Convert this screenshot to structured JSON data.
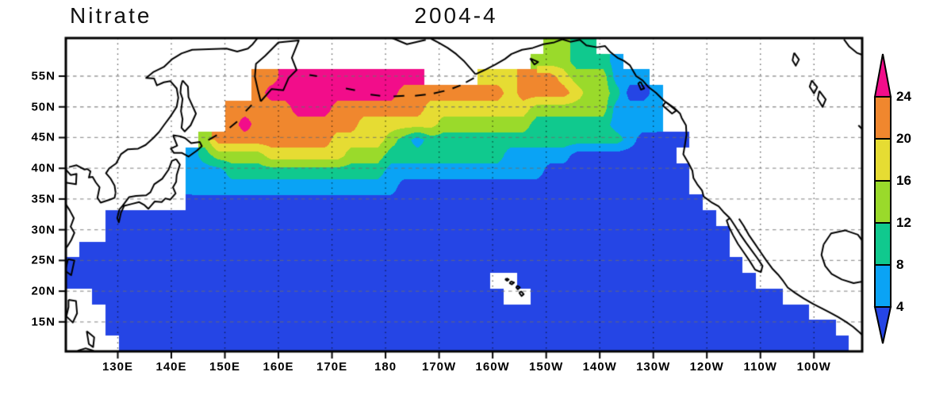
{
  "header": {
    "title": "Nitrate",
    "period": "2004-4"
  },
  "axes": {
    "lat_ticks": [
      {
        "label": "55N",
        "deg": 55
      },
      {
        "label": "50N",
        "deg": 50
      },
      {
        "label": "45N",
        "deg": 45
      },
      {
        "label": "40N",
        "deg": 40
      },
      {
        "label": "35N",
        "deg": 35
      },
      {
        "label": "30N",
        "deg": 30
      },
      {
        "label": "25N",
        "deg": 25
      },
      {
        "label": "20N",
        "deg": 20
      },
      {
        "label": "15N",
        "deg": 15
      }
    ],
    "lon_ticks": [
      {
        "label": "130E",
        "deg": 130
      },
      {
        "label": "140E",
        "deg": 140
      },
      {
        "label": "150E",
        "deg": 150
      },
      {
        "label": "160E",
        "deg": 160
      },
      {
        "label": "170E",
        "deg": 170
      },
      {
        "label": "180",
        "deg": 180
      },
      {
        "label": "170W",
        "deg": 190
      },
      {
        "label": "160W",
        "deg": 200
      },
      {
        "label": "150W",
        "deg": 210
      },
      {
        "label": "140W",
        "deg": 220
      },
      {
        "label": "130W",
        "deg": 230
      },
      {
        "label": "120W",
        "deg": 240
      },
      {
        "label": "110W",
        "deg": 250
      },
      {
        "label": "100W",
        "deg": 260
      }
    ]
  },
  "colorbar": {
    "tick_labels": [
      "24",
      "20",
      "16",
      "12",
      "8",
      "4"
    ],
    "levels": [
      4,
      8,
      12,
      16,
      20,
      24
    ]
  },
  "chart_data": {
    "type": "heatmap",
    "title": "Nitrate",
    "period": "2004-4",
    "region": {
      "lon_min_deg_east": 120.3,
      "lon_max_deg_east": 269.0,
      "lat_min": 10.2,
      "lat_max": 61.2
    },
    "contour_levels": [
      4,
      8,
      12,
      16,
      20,
      24
    ],
    "band_meaning": [
      "<4",
      "4-8",
      "8-12",
      "12-16",
      "16-20",
      "20-24",
      ">24"
    ],
    "band_colors": [
      "#2545e5",
      "#0aa3f5",
      "#10c98e",
      "#9ada2b",
      "#e6dc33",
      "#f0872e",
      "#f20d8a"
    ],
    "no_data_color": "#ffffff",
    "frame_color": "#000000",
    "no_data_char": ".",
    "grid_cols": 60,
    "grid_rows": 20,
    "grid_rows_north_to_south": [
      "....................................4433....................",
      "...................................4443332..................",
      "..............6677777777777....5556665444222.................",
      "..............6777777777766666666566665443112................",
      "............666667776666666555555554444442222...............",
      "............676666666655555544444443333332222..............",
      "..........4666666666555543233333333333333321111..............",
      ".........2344445555554443333333332222211111111..............",
      ".........22233333333333322222222222211111111111..............",
      ".........22222222222222221111111111111111111111.............",
      ".........111111111111111111111111111111111111111............",
      "...1111111111111111111111111111111111111111111111...........",
      "...11111111111111111111111111111111111111111111111..........",
      ".1111111111111111111111111111111111111111111111111..........",
      "111111111111111111111111111111111111111111111111111.........",
      "11111111111111111111111111111111..111111111111111111........",
      "..1111111111111111111111111111111..1111111111111111111......",
      "...11111111111111111111111111111111111111111111111111111....",
      "...1111111111111111111111111111111111111111111111111111111..",
      "....1111111111111111111111111111111111111111111111111111111."
    ]
  }
}
